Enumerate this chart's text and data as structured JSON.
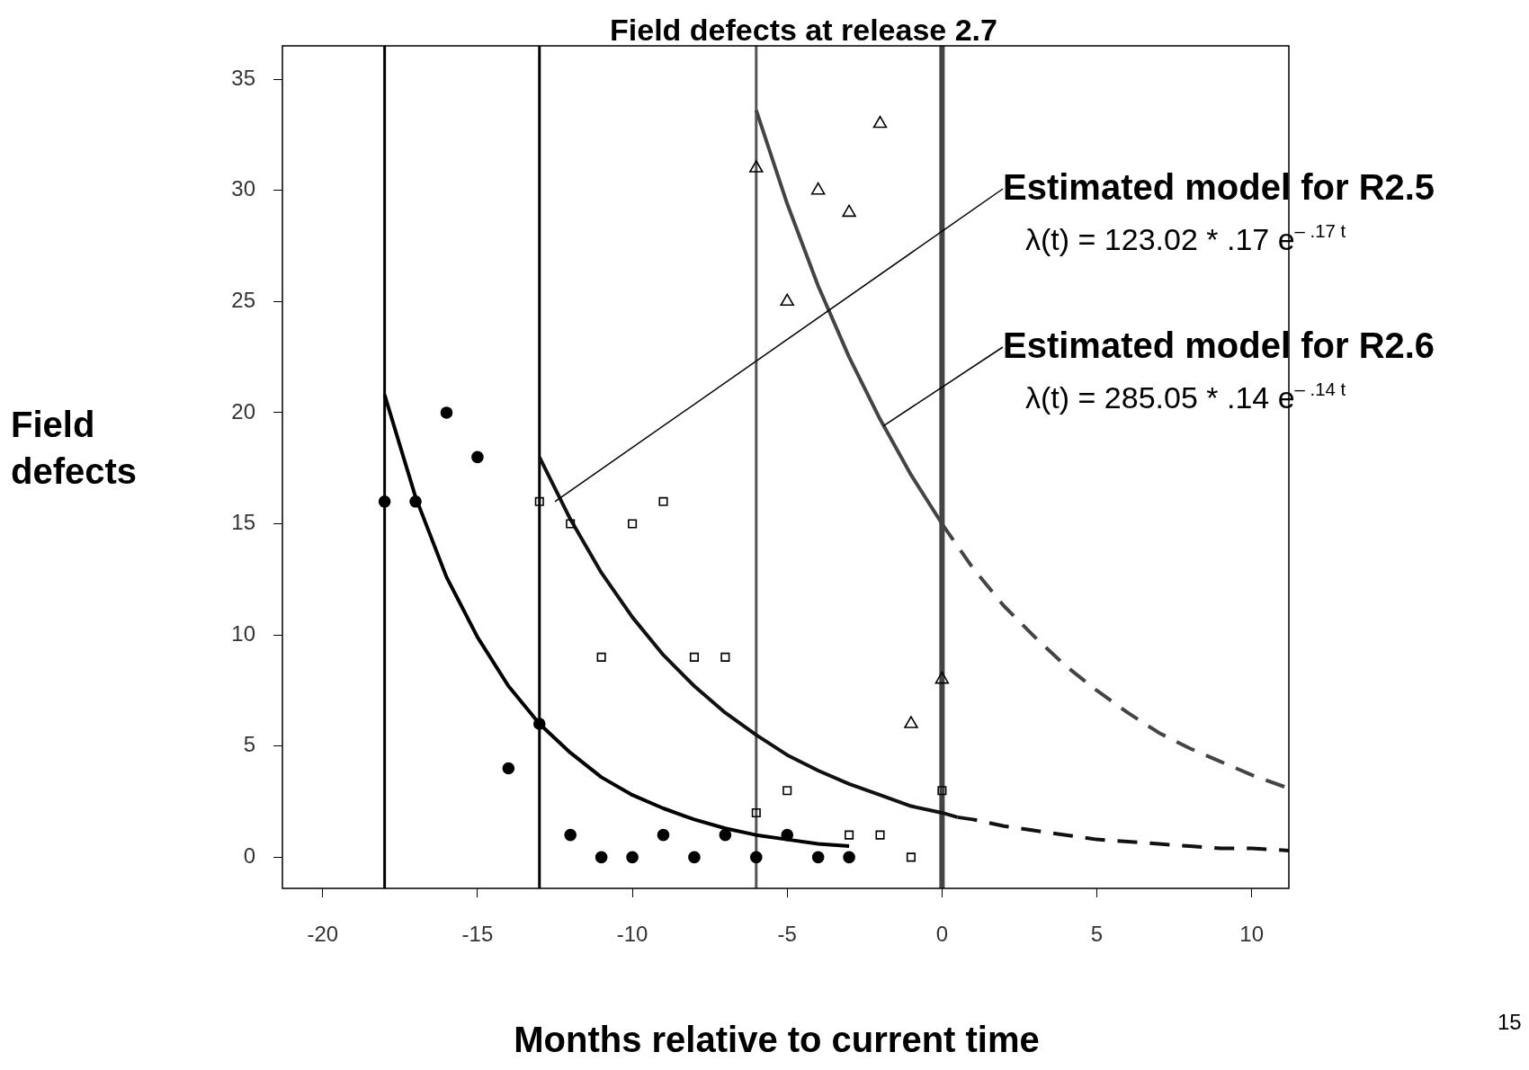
{
  "chart_data": {
    "type": "scatter",
    "title": "Field defects at release 2.7",
    "xlabel": "Months relative to current time",
    "ylabel": "Field defects",
    "xlim": [
      -21.3,
      11.2
    ],
    "xticks": [
      -20,
      -15,
      -10,
      -5,
      0,
      5,
      10
    ],
    "ylim": [
      -1.4,
      36.5
    ],
    "yticks": [
      0,
      5,
      10,
      15,
      20,
      25,
      30,
      35
    ],
    "grid": false,
    "series": [
      {
        "marker": "circle",
        "color": "#000000",
        "x": [
          -18,
          -17,
          -16,
          -15,
          -14,
          -13,
          -12,
          -11,
          -10,
          -9,
          -8,
          -7,
          -6,
          -5,
          -4,
          -3
        ],
        "values": [
          16,
          16,
          20,
          18,
          4,
          6,
          1,
          0,
          0,
          1,
          0,
          1,
          0,
          1,
          0,
          0
        ]
      },
      {
        "marker": "square",
        "color": "#000000",
        "x": [
          -13,
          -12,
          -11,
          -10,
          -9,
          -8,
          -7,
          -6,
          -5,
          -3,
          -2,
          -1,
          0
        ],
        "values": [
          16,
          15,
          9,
          15,
          16,
          9,
          9,
          2,
          3,
          1,
          1,
          0,
          3
        ]
      },
      {
        "marker": "triangle",
        "color": "#000000",
        "x": [
          -6,
          -5,
          -4,
          -3,
          -2,
          -1,
          0
        ],
        "values": [
          31,
          25,
          30,
          29,
          33,
          6,
          8
        ]
      },
      {
        "type": "line",
        "marker": "none",
        "line_style": "solid",
        "color": "#000000",
        "x": [
          -18,
          -17,
          -16,
          -15,
          -14,
          -13,
          -12,
          -11,
          -10,
          -9,
          -8,
          -7,
          -6,
          -5,
          -4,
          -3
        ],
        "values": [
          20.8,
          16.2,
          12.6,
          9.9,
          7.7,
          6.0,
          4.7,
          3.6,
          2.8,
          2.2,
          1.7,
          1.3,
          1.0,
          0.8,
          0.6,
          0.5
        ]
      },
      {
        "type": "line",
        "marker": "none",
        "line_style": "solid",
        "color": "#111111",
        "x": [
          -13,
          -12,
          -11,
          -10,
          -9,
          -8,
          -7,
          -6,
          -5,
          -4,
          -3,
          -2,
          -1,
          0,
          0.5
        ],
        "values": [
          18,
          15.2,
          12.8,
          10.8,
          9.1,
          7.7,
          6.5,
          5.5,
          4.6,
          3.9,
          3.3,
          2.8,
          2.3,
          2.0,
          1.8
        ]
      },
      {
        "type": "line",
        "marker": "none",
        "line_style": "dashed",
        "color": "#111111",
        "x": [
          0.5,
          1,
          2,
          3,
          4,
          5,
          6,
          7,
          8,
          9,
          10,
          11.2
        ],
        "values": [
          1.8,
          1.7,
          1.4,
          1.2,
          1.0,
          0.8,
          0.7,
          0.6,
          0.5,
          0.4,
          0.4,
          0.3
        ]
      },
      {
        "type": "line",
        "marker": "none",
        "line_style": "solid",
        "color": "#444444",
        "x": [
          -6,
          -5,
          -4,
          -3,
          -2,
          -1,
          0
        ],
        "values": [
          33.6,
          29.4,
          25.7,
          22.5,
          19.7,
          17.2,
          15.0
        ]
      },
      {
        "type": "line",
        "marker": "none",
        "line_style": "dashed",
        "color": "#444444",
        "x": [
          0,
          1,
          2,
          3,
          4,
          5,
          6,
          7,
          8,
          9,
          10,
          11.2
        ],
        "values": [
          15.0,
          13.0,
          11.3,
          9.9,
          8.6,
          7.5,
          6.5,
          5.6,
          4.9,
          4.3,
          3.7,
          3.1
        ]
      }
    ],
    "ref_lines": [
      {
        "axis": "x",
        "value": -18,
        "color": "#000000"
      },
      {
        "axis": "x",
        "value": -13,
        "color": "#000000"
      },
      {
        "axis": "x",
        "value": -6,
        "color": "#555555"
      },
      {
        "axis": "x",
        "value": 0,
        "color": "#444444"
      }
    ],
    "annotations": [
      {
        "text": "Estimated model for R2.5",
        "x": -12.5,
        "y": 16
      },
      "λ(t) = 123.02 * .17 e$^{– .17 t}$",
      {
        "text": "Estimated model for R2.6",
        "x": -1.9,
        "y": 19.4
      },
      "λ(t) = 285.05 * .14 e$^{– .14 t}$",
      "15"
    ],
    "legend": false
  }
}
